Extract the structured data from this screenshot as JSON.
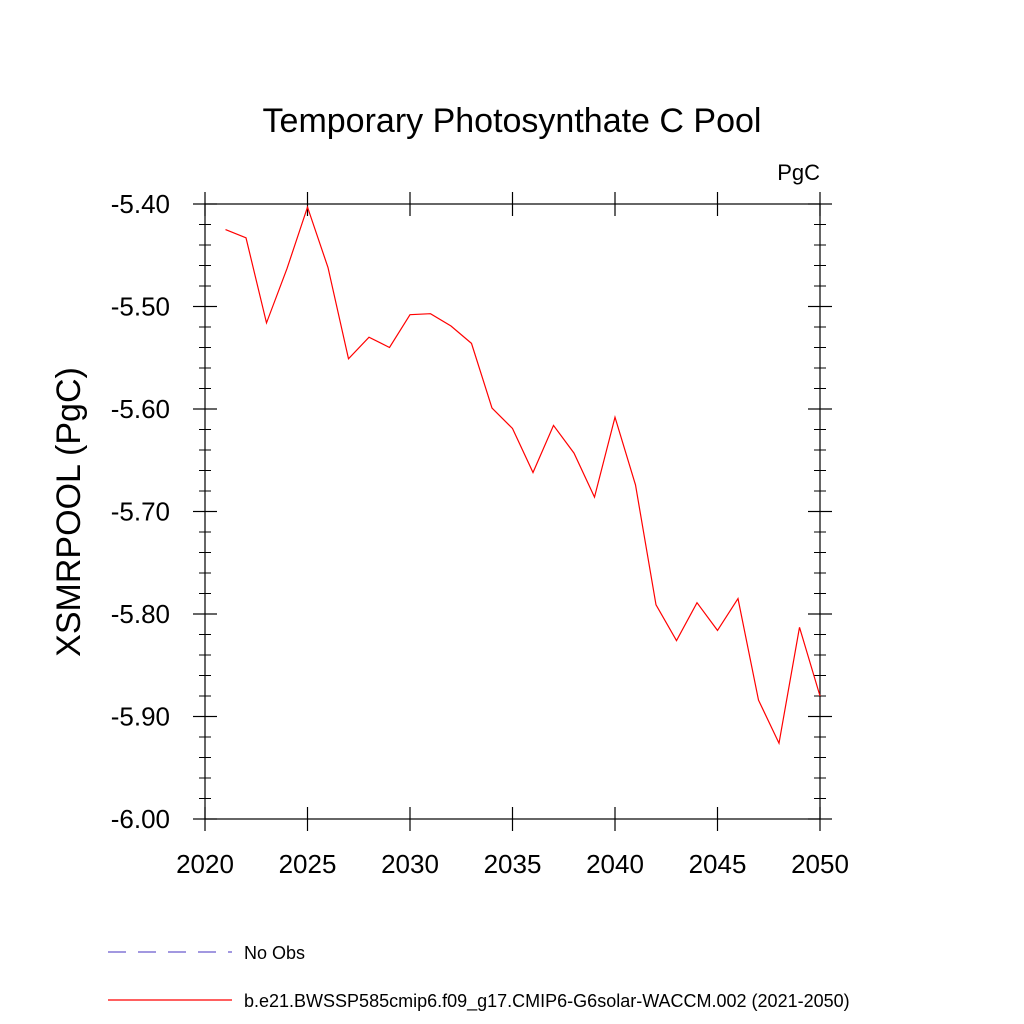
{
  "chart_data": {
    "type": "line",
    "title": "Temporary Photosynthate C Pool",
    "units": "PgC",
    "ylabel": "XSMRPOOL  (PgC)",
    "xlabel": "",
    "xlim": [
      2020,
      2050
    ],
    "ylim": [
      -6.0,
      -5.4
    ],
    "x_ticks": [
      "2020",
      "2025",
      "2030",
      "2035",
      "2040",
      "2045",
      "2050"
    ],
    "y_ticks": [
      "-6.00",
      "-5.90",
      "-5.80",
      "-5.70",
      "-5.60",
      "-5.50",
      "-5.40"
    ],
    "grid": false,
    "legend_position": "bottom",
    "series": [
      {
        "name": "No Obs",
        "color": "#6a5acd",
        "style": "dashed",
        "x": [],
        "values": []
      },
      {
        "name": "b.e21.BWSSP585cmip6.f09_g17.CMIP6-G6solar-WACCM.002 (2021-2050)",
        "color": "#ff0000",
        "style": "solid",
        "x": [
          2021,
          2022,
          2023,
          2024,
          2025,
          2026,
          2027,
          2028,
          2029,
          2030,
          2031,
          2032,
          2033,
          2034,
          2035,
          2036,
          2037,
          2038,
          2039,
          2040,
          2041,
          2042,
          2043,
          2044,
          2045,
          2046,
          2047,
          2048,
          2049,
          2050
        ],
        "values": [
          -5.425,
          -5.433,
          -5.516,
          -5.463,
          -5.403,
          -5.462,
          -5.551,
          -5.53,
          -5.54,
          -5.508,
          -5.507,
          -5.519,
          -5.536,
          -5.599,
          -5.619,
          -5.662,
          -5.616,
          -5.643,
          -5.686,
          -5.608,
          -5.674,
          -5.791,
          -5.826,
          -5.789,
          -5.816,
          -5.785,
          -5.884,
          -5.926,
          -5.813,
          -5.88
        ]
      }
    ]
  }
}
